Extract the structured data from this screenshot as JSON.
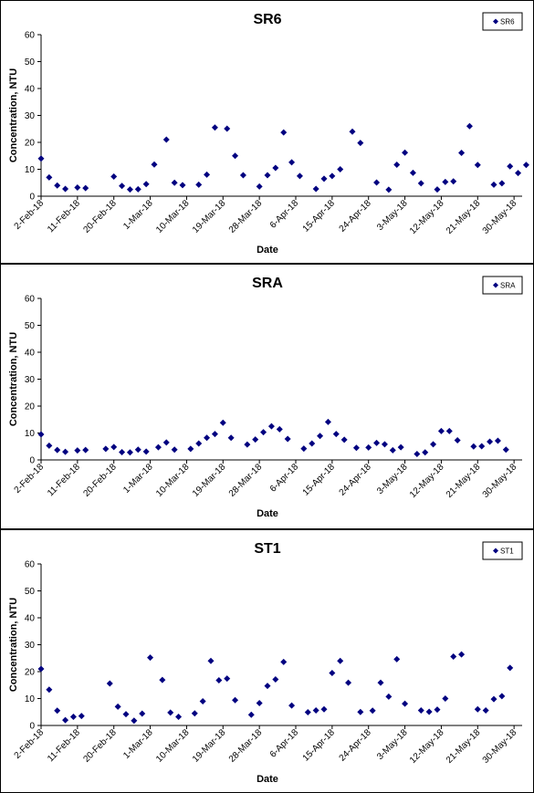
{
  "chart_data": [
    {
      "type": "scatter",
      "title": "SR6",
      "xlabel": "Date",
      "ylabel": "Concentration, NTU",
      "ylim": [
        0,
        60
      ],
      "yticks": [
        0,
        10,
        20,
        30,
        40,
        50,
        60
      ],
      "xlim": [
        "2-Feb-18",
        "1-Jun-18"
      ],
      "xticks": [
        "2-Feb-18",
        "11-Feb-18",
        "20-Feb-18",
        "1-Mar-18",
        "10-Mar-18",
        "19-Mar-18",
        "28-Mar-18",
        "6-Apr-18",
        "15-Apr-18",
        "24-Apr-18",
        "3-May-18",
        "12-May-18",
        "21-May-18",
        "30-May-18"
      ],
      "grid": false,
      "legend_position": "top-right",
      "marker_color": "#000080",
      "series": [
        {
          "name": "SR6",
          "points": [
            [
              "2-Feb-18",
              14
            ],
            [
              "4-Feb-18",
              7
            ],
            [
              "6-Feb-18",
              4
            ],
            [
              "8-Feb-18",
              2.7
            ],
            [
              "11-Feb-18",
              3.2
            ],
            [
              "13-Feb-18",
              3
            ],
            [
              "20-Feb-18",
              7.3
            ],
            [
              "22-Feb-18",
              3.8
            ],
            [
              "24-Feb-18",
              2.5
            ],
            [
              "26-Feb-18",
              2.6
            ],
            [
              "28-Feb-18",
              4.5
            ],
            [
              "2-Mar-18",
              11.8
            ],
            [
              "5-Mar-18",
              21
            ],
            [
              "7-Mar-18",
              5
            ],
            [
              "9-Mar-18",
              4.1
            ],
            [
              "13-Mar-18",
              4.3
            ],
            [
              "15-Mar-18",
              8
            ],
            [
              "17-Mar-18",
              25.5
            ],
            [
              "20-Mar-18",
              25.1
            ],
            [
              "22-Mar-18",
              15
            ],
            [
              "24-Mar-18",
              7.8
            ],
            [
              "28-Mar-18",
              3.6
            ],
            [
              "30-Mar-18",
              7.8
            ],
            [
              "1-Apr-18",
              10.5
            ],
            [
              "3-Apr-18",
              23.7
            ],
            [
              "5-Apr-18",
              12.6
            ],
            [
              "7-Apr-18",
              7.5
            ],
            [
              "11-Apr-18",
              2.7
            ],
            [
              "13-Apr-18",
              6.5
            ],
            [
              "15-Apr-18",
              7.5
            ],
            [
              "17-Apr-18",
              10
            ],
            [
              "20-Apr-18",
              24
            ],
            [
              "22-Apr-18",
              19.8
            ],
            [
              "26-Apr-18",
              5.1
            ],
            [
              "29-Apr-18",
              2.4
            ],
            [
              "1-May-18",
              11.7
            ],
            [
              "3-May-18",
              16.2
            ],
            [
              "5-May-18",
              8.7
            ],
            [
              "7-May-18",
              4.8
            ],
            [
              "11-May-18",
              2.5
            ],
            [
              "13-May-18",
              5.3
            ],
            [
              "15-May-18",
              5.5
            ],
            [
              "17-May-18",
              16.1
            ],
            [
              "19-May-18",
              26
            ],
            [
              "21-May-18",
              11.6
            ],
            [
              "25-May-18",
              4.3
            ],
            [
              "27-May-18",
              4.8
            ],
            [
              "29-May-18",
              11.1
            ],
            [
              "31-May-18",
              8.6
            ],
            [
              "2-Jun-18",
              11.6
            ]
          ]
        }
      ]
    },
    {
      "type": "scatter",
      "title": "SRA",
      "xlabel": "Date",
      "ylabel": "Concentration, NTU",
      "ylim": [
        0,
        60
      ],
      "yticks": [
        0,
        10,
        20,
        30,
        40,
        50,
        60
      ],
      "xlim": [
        "2-Feb-18",
        "1-Jun-18"
      ],
      "xticks": [
        "2-Feb-18",
        "11-Feb-18",
        "20-Feb-18",
        "1-Mar-18",
        "10-Mar-18",
        "19-Mar-18",
        "28-Mar-18",
        "6-Apr-18",
        "15-Apr-18",
        "24-Apr-18",
        "3-May-18",
        "12-May-18",
        "21-May-18",
        "30-May-18"
      ],
      "grid": false,
      "legend_position": "top-right",
      "marker_color": "#000080",
      "series": [
        {
          "name": "SRA",
          "points": [
            [
              "2-Feb-18",
              9.5
            ],
            [
              "4-Feb-18",
              5.3
            ],
            [
              "6-Feb-18",
              3.7
            ],
            [
              "8-Feb-18",
              3
            ],
            [
              "11-Feb-18",
              3.5
            ],
            [
              "13-Feb-18",
              3.7
            ],
            [
              "18-Feb-18",
              4.1
            ],
            [
              "20-Feb-18",
              4.8
            ],
            [
              "22-Feb-18",
              2.9
            ],
            [
              "24-Feb-18",
              2.8
            ],
            [
              "26-Feb-18",
              3.8
            ],
            [
              "28-Feb-18",
              3.1
            ],
            [
              "3-Mar-18",
              4.7
            ],
            [
              "5-Mar-18",
              6.5
            ],
            [
              "7-Mar-18",
              3.8
            ],
            [
              "11-Mar-18",
              4.1
            ],
            [
              "13-Mar-18",
              6.1
            ],
            [
              "15-Mar-18",
              8.2
            ],
            [
              "17-Mar-18",
              9.6
            ],
            [
              "19-Mar-18",
              13.8
            ],
            [
              "21-Mar-18",
              8.2
            ],
            [
              "25-Mar-18",
              5.7
            ],
            [
              "27-Mar-18",
              7.6
            ],
            [
              "29-Mar-18",
              10.3
            ],
            [
              "31-Mar-18",
              12.5
            ],
            [
              "2-Apr-18",
              11.4
            ],
            [
              "4-Apr-18",
              7.8
            ],
            [
              "8-Apr-18",
              4.2
            ],
            [
              "10-Apr-18",
              6.1
            ],
            [
              "12-Apr-18",
              8.9
            ],
            [
              "14-Apr-18",
              14.1
            ],
            [
              "16-Apr-18",
              9.6
            ],
            [
              "18-Apr-18",
              7.5
            ],
            [
              "21-Apr-18",
              4.5
            ],
            [
              "24-Apr-18",
              4.6
            ],
            [
              "26-Apr-18",
              6.3
            ],
            [
              "28-Apr-18",
              5.8
            ],
            [
              "30-Apr-18",
              3.6
            ],
            [
              "2-May-18",
              4.7
            ],
            [
              "6-May-18",
              2.2
            ],
            [
              "8-May-18",
              2.8
            ],
            [
              "10-May-18",
              5.8
            ],
            [
              "12-May-18",
              10.7
            ],
            [
              "14-May-18",
              10.7
            ],
            [
              "16-May-18",
              7.3
            ],
            [
              "20-May-18",
              5
            ],
            [
              "22-May-18",
              5.1
            ],
            [
              "24-May-18",
              6.8
            ],
            [
              "26-May-18",
              7.1
            ],
            [
              "28-May-18",
              3.8
            ]
          ]
        }
      ]
    },
    {
      "type": "scatter",
      "title": "ST1",
      "xlabel": "Date",
      "ylabel": "Concentration, NTU",
      "ylim": [
        0,
        60
      ],
      "yticks": [
        0,
        10,
        20,
        30,
        40,
        50,
        60
      ],
      "xlim": [
        "2-Feb-18",
        "1-Jun-18"
      ],
      "xticks": [
        "2-Feb-18",
        "11-Feb-18",
        "20-Feb-18",
        "1-Mar-18",
        "10-Mar-18",
        "19-Mar-18",
        "28-Mar-18",
        "6-Apr-18",
        "15-Apr-18",
        "24-Apr-18",
        "3-May-18",
        "12-May-18",
        "21-May-18",
        "30-May-18"
      ],
      "grid": false,
      "legend_position": "top-right",
      "marker_color": "#000080",
      "series": [
        {
          "name": "ST1",
          "points": [
            [
              "2-Feb-18",
              21
            ],
            [
              "4-Feb-18",
              13.3
            ],
            [
              "6-Feb-18",
              5.5
            ],
            [
              "8-Feb-18",
              2
            ],
            [
              "10-Feb-18",
              3.2
            ],
            [
              "12-Feb-18",
              3.5
            ],
            [
              "19-Feb-18",
              15.6
            ],
            [
              "21-Feb-18",
              7
            ],
            [
              "23-Feb-18",
              4.2
            ],
            [
              "25-Feb-18",
              1.8
            ],
            [
              "27-Feb-18",
              4.4
            ],
            [
              "1-Mar-18",
              25.2
            ],
            [
              "4-Mar-18",
              16.9
            ],
            [
              "6-Mar-18",
              4.8
            ],
            [
              "8-Mar-18",
              3.2
            ],
            [
              "12-Mar-18",
              4.5
            ],
            [
              "14-Mar-18",
              9
            ],
            [
              "16-Mar-18",
              24
            ],
            [
              "18-Mar-18",
              16.8
            ],
            [
              "20-Mar-18",
              17.4
            ],
            [
              "22-Mar-18",
              9.4
            ],
            [
              "26-Mar-18",
              4
            ],
            [
              "28-Mar-18",
              8.3
            ],
            [
              "30-Mar-18",
              14.7
            ],
            [
              "1-Apr-18",
              17.1
            ],
            [
              "3-Apr-18",
              23.6
            ],
            [
              "5-Apr-18",
              7.4
            ],
            [
              "9-Apr-18",
              4.9
            ],
            [
              "11-Apr-18",
              5.6
            ],
            [
              "13-Apr-18",
              6
            ],
            [
              "15-Apr-18",
              19.5
            ],
            [
              "17-Apr-18",
              24
            ],
            [
              "19-Apr-18",
              15.9
            ],
            [
              "22-Apr-18",
              5
            ],
            [
              "25-Apr-18",
              5.5
            ],
            [
              "27-Apr-18",
              15.9
            ],
            [
              "29-Apr-18",
              10.7
            ],
            [
              "1-May-18",
              24.6
            ],
            [
              "3-May-18",
              8.1
            ],
            [
              "7-May-18",
              5.6
            ],
            [
              "9-May-18",
              5.1
            ],
            [
              "11-May-18",
              5.9
            ],
            [
              "13-May-18",
              10
            ],
            [
              "15-May-18",
              25.6
            ],
            [
              "17-May-18",
              26.4
            ],
            [
              "21-May-18",
              6
            ],
            [
              "23-May-18",
              5.6
            ],
            [
              "25-May-18",
              9.8
            ],
            [
              "27-May-18",
              10.9
            ],
            [
              "29-May-18",
              21.4
            ]
          ]
        }
      ]
    }
  ]
}
